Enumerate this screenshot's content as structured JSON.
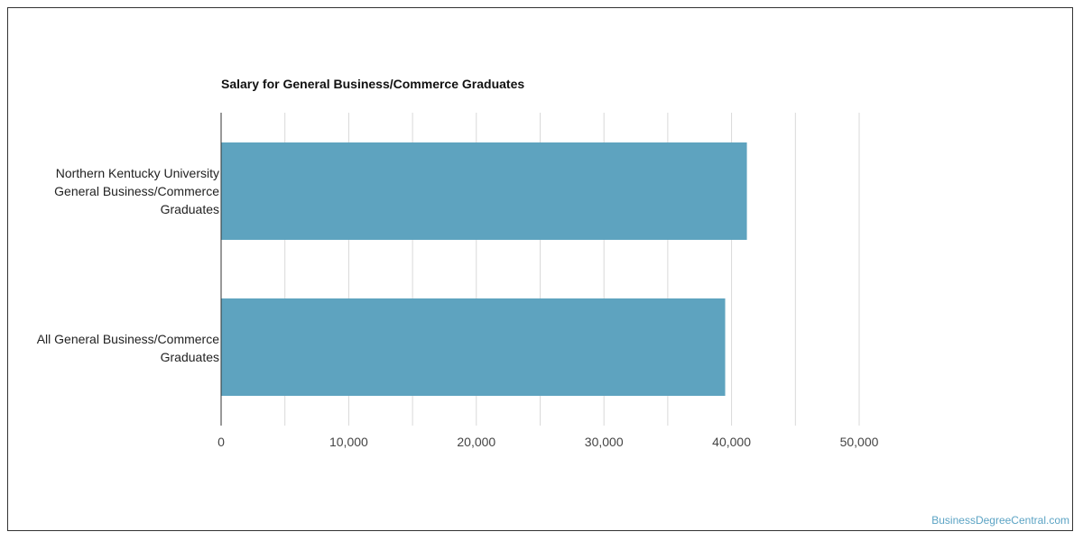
{
  "chart_data": {
    "type": "bar",
    "orientation": "horizontal",
    "title": "Salary for General Business/Commerce Graduates",
    "xlabel": "",
    "ylabel": "",
    "categories": [
      [
        "Northern Kentucky University",
        "General Business/Commerce",
        "Graduates"
      ],
      [
        "All General Business/Commerce",
        "Graduates"
      ]
    ],
    "values": [
      41200,
      39500
    ],
    "xlim": [
      0,
      50000
    ],
    "ticks": [
      0,
      10000,
      20000,
      30000,
      40000,
      50000
    ],
    "tick_labels": [
      "0",
      "10,000",
      "20,000",
      "30,000",
      "40,000",
      "50,000"
    ],
    "grid": true,
    "legend": "none",
    "bar_color": "#5ea3bf"
  },
  "watermark": "BusinessDegreeCentral.com"
}
